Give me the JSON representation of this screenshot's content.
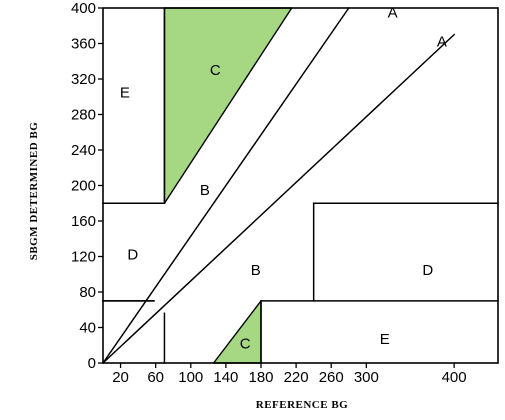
{
  "chart_data": {
    "type": "error-grid",
    "title": "",
    "xlabel": "REFERENCE BG",
    "ylabel": "SBGM DETERMINED BG",
    "xlim": [
      0,
      450
    ],
    "ylim": [
      0,
      400
    ],
    "x_tick_values": [
      20,
      60,
      100,
      140,
      180,
      220,
      260,
      300,
      400
    ],
    "x_tick_labels": [
      "20",
      "60",
      "100",
      "140",
      "180",
      "220",
      "260",
      "300",
      "400"
    ],
    "y_tick_values": [
      0,
      40,
      80,
      120,
      160,
      200,
      240,
      280,
      320,
      360,
      400
    ],
    "y_tick_labels": [
      "0",
      "40",
      "80",
      "120",
      "160",
      "200",
      "240",
      "280",
      "320",
      "360",
      "400"
    ],
    "grid": false,
    "highlight_color": "#a6d783",
    "lines": [
      {
        "points": [
          [
            0,
            0
          ],
          [
            280,
            400
          ]
        ]
      },
      {
        "points": [
          [
            0,
            0
          ],
          [
            400,
            370
          ]
        ]
      },
      {
        "points": [
          [
            70,
            0
          ],
          [
            70,
            56
          ]
        ]
      },
      {
        "points": [
          [
            70,
            180
          ],
          [
            70,
            400
          ]
        ]
      },
      {
        "points": [
          [
            0,
            180
          ],
          [
            70,
            180
          ]
        ]
      },
      {
        "points": [
          [
            0,
            70
          ],
          [
            58,
            70
          ]
        ]
      },
      {
        "points": [
          [
            0,
            70
          ],
          [
            58,
            70
          ]
        ]
      },
      {
        "points": [
          [
            180,
            0
          ],
          [
            180,
            70
          ]
        ]
      },
      {
        "points": [
          [
            180,
            70
          ],
          [
            450,
            70
          ]
        ]
      },
      {
        "points": [
          [
            240,
            70
          ],
          [
            240,
            180
          ]
        ]
      },
      {
        "points": [
          [
            240,
            180
          ],
          [
            450,
            180
          ]
        ]
      }
    ],
    "regions": [
      {
        "label": "C",
        "highlighted": true,
        "polygon": [
          [
            70,
            180
          ],
          [
            70,
            400
          ],
          [
            215,
            400
          ]
        ]
      },
      {
        "label": "C",
        "highlighted": true,
        "polygon": [
          [
            126,
            0
          ],
          [
            180,
            0
          ],
          [
            180,
            70
          ]
        ]
      }
    ],
    "zone_labels": [
      {
        "text": "E",
        "x": 25,
        "y": 305
      },
      {
        "text": "C",
        "x": 128,
        "y": 330
      },
      {
        "text": "A",
        "x": 330,
        "y": 395
      },
      {
        "text": "A",
        "x": 386,
        "y": 362
      },
      {
        "text": "B",
        "x": 116,
        "y": 195
      },
      {
        "text": "D",
        "x": 34,
        "y": 122
      },
      {
        "text": "B",
        "x": 174,
        "y": 105
      },
      {
        "text": "D",
        "x": 370,
        "y": 105
      },
      {
        "text": "C",
        "x": 162,
        "y": 22
      },
      {
        "text": "E",
        "x": 321,
        "y": 27
      }
    ]
  }
}
